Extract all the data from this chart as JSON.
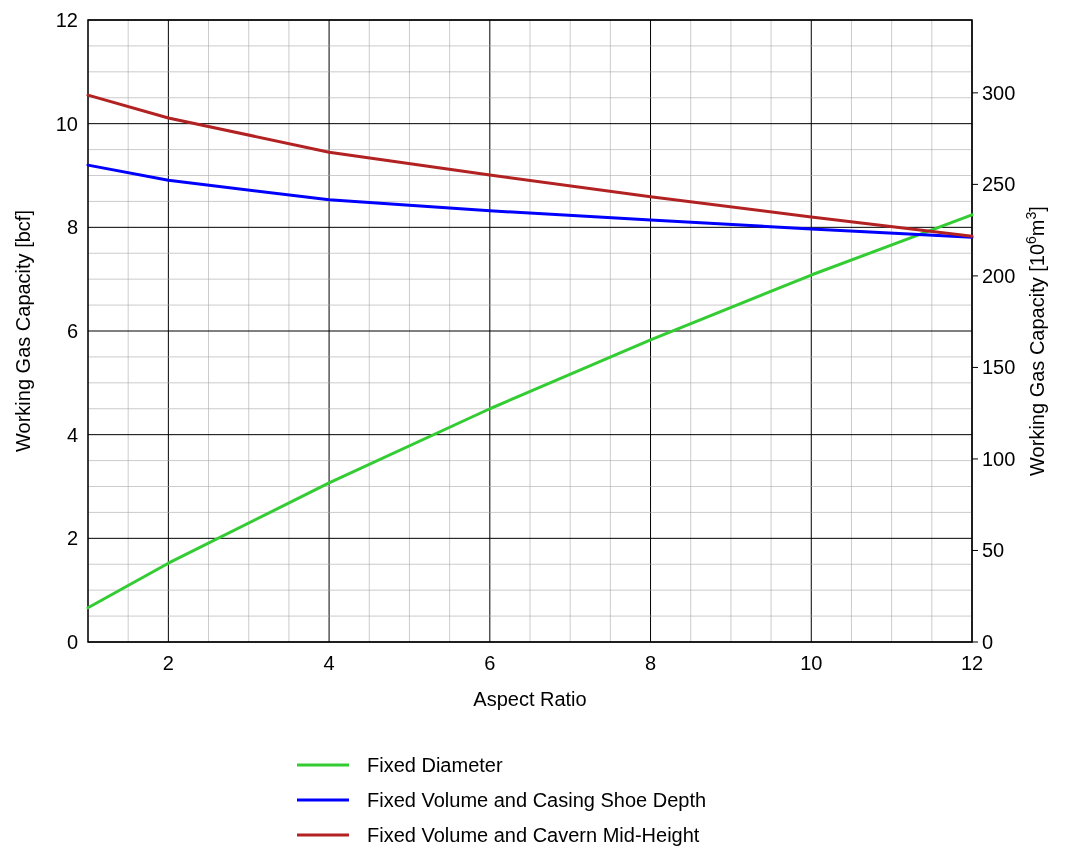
{
  "chart_data": {
    "type": "line",
    "xlabel": "Aspect Ratio",
    "ylabel": "Working Gas Capacity [bcf]",
    "y2label": "Working Gas Capacity [10$^{6}$m$^{3}$]",
    "x": [
      1,
      2,
      4,
      6,
      8,
      10,
      12
    ],
    "series": [
      {
        "name": "Fixed Diameter",
        "color": "#33cc33",
        "values": [
          0.66,
          1.52,
          3.07,
          4.5,
          5.83,
          7.08,
          8.24
        ]
      },
      {
        "name": "Fixed Volume and Casing Shoe Depth",
        "color": "#0000ff",
        "values": [
          9.2,
          8.91,
          8.53,
          8.32,
          8.14,
          7.97,
          7.81
        ]
      },
      {
        "name": "Fixed Volume and Cavern Mid-Height",
        "color": "#b22222",
        "values": [
          10.55,
          10.11,
          9.45,
          9.01,
          8.59,
          8.2,
          7.83
        ]
      }
    ],
    "xlim": [
      1,
      12
    ],
    "xticks": [
      {
        "value": 1,
        "label": null
      },
      {
        "value": 1.5,
        "label": null
      },
      2,
      {
        "value": 2.5,
        "label": null
      },
      {
        "value": 3,
        "label": null
      },
      {
        "value": 3.5,
        "label": null
      },
      4,
      {
        "value": 4.5,
        "label": null
      },
      {
        "value": 5,
        "label": null
      },
      {
        "value": 5.5,
        "label": null
      },
      6,
      {
        "value": 6.5,
        "label": null
      },
      {
        "value": 7,
        "label": null
      },
      {
        "value": 7.5,
        "label": null
      },
      8,
      {
        "value": 8.5,
        "label": null
      },
      {
        "value": 9,
        "label": null
      },
      {
        "value": 9.5,
        "label": null
      },
      10,
      {
        "value": 10.5,
        "label": null
      },
      {
        "value": 11,
        "label": null
      },
      {
        "value": 11.5,
        "label": null
      },
      12
    ],
    "ylim": [
      0,
      12
    ],
    "yticks": [
      0,
      {
        "value": 0.5,
        "label": null
      },
      {
        "value": 1,
        "label": null
      },
      {
        "value": 1.5,
        "label": null
      },
      2,
      {
        "value": 2.5,
        "label": null
      },
      {
        "value": 3,
        "label": null
      },
      {
        "value": 3.5,
        "label": null
      },
      4,
      {
        "value": 4.5,
        "label": null
      },
      {
        "value": 5,
        "label": null
      },
      {
        "value": 5.5,
        "label": null
      },
      6,
      {
        "value": 6.5,
        "label": null
      },
      {
        "value": 7,
        "label": null
      },
      {
        "value": 7.5,
        "label": null
      },
      8,
      {
        "value": 8.5,
        "label": null
      },
      {
        "value": 9,
        "label": null
      },
      {
        "value": 9.5,
        "label": null
      },
      10,
      {
        "value": 10.5,
        "label": null
      },
      {
        "value": 11,
        "label": null
      },
      {
        "value": 11.5,
        "label": null
      },
      12
    ],
    "y2lim": [
      0,
      339.8
    ],
    "y2ticks": [
      0,
      50,
      100,
      150,
      200,
      250,
      300
    ],
    "grid": true,
    "legend": "bottom",
    "marker": "none",
    "line_style": "solid"
  }
}
